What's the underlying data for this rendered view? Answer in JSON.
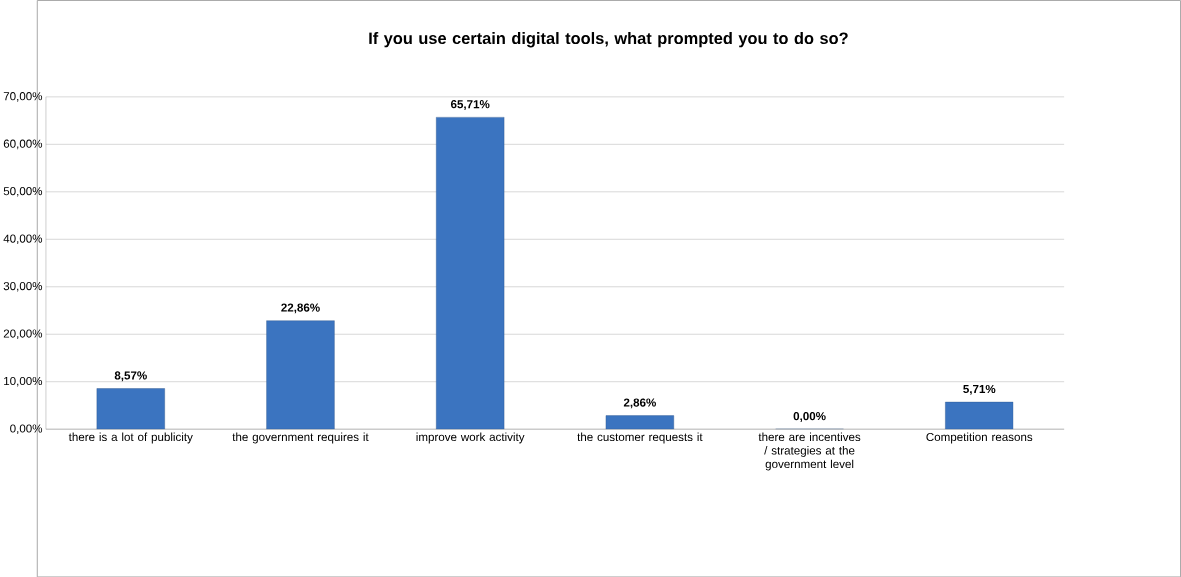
{
  "chart_data": {
    "type": "bar",
    "title": "If you use certain digital tools, what prompted you to do so?",
    "categories": [
      "there is a lot of publicity",
      "the government requires it",
      "improve work activity",
      "the customer requests it",
      "there are incentives / strategies at the government level",
      "Competition reasons"
    ],
    "values": [
      8.57,
      22.86,
      65.71,
      2.86,
      0,
      5.71
    ],
    "value_labels": [
      "8,57%",
      "22,86%",
      "65,71%",
      "2,86%",
      "0,00%",
      "5,71%"
    ],
    "color": "#3b74c0",
    "ylim": [
      0,
      70
    ],
    "yticks": [
      {
        "value": 0,
        "label": "0,00%"
      },
      {
        "value": 10,
        "label": "10,00%"
      },
      {
        "value": 20,
        "label": "20,00%"
      },
      {
        "value": 30,
        "label": "30,00%"
      },
      {
        "value": 40,
        "label": "40,00%"
      },
      {
        "value": 50,
        "label": "50,00%"
      },
      {
        "value": 60,
        "label": "60,00%"
      },
      {
        "value": 70,
        "label": "70,00%"
      }
    ],
    "grid": "y"
  }
}
